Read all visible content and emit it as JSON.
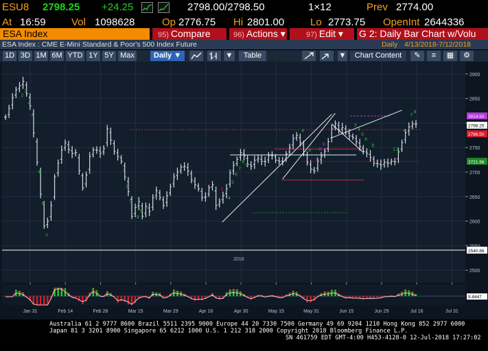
{
  "quote": {
    "ticker": "ESU8",
    "last": "2798.25",
    "change": "+24.25",
    "bid_ask": "2798.00/2798.50",
    "size": "1×12",
    "prev_label": "Prev",
    "prev": "2774.00",
    "time_label": "At",
    "time": "16:59",
    "vol_label": "Vol",
    "volume": "1098628",
    "open_label": "Op",
    "open": "2776.75",
    "high_label": "Hi",
    "high": "2801.00",
    "low_label": "Lo",
    "low": "2773.75",
    "oi_label": "OpenInt",
    "open_interest": "2644336"
  },
  "menubar": {
    "security": "ESA Index",
    "compare_num": "95)",
    "compare": "Compare",
    "actions_num": "96)",
    "actions": "Actions ▾",
    "edit_num": "97)",
    "edit": "Edit ▾",
    "title": "G 2: Daily Bar Chart w/Volu"
  },
  "info": {
    "description": "ESA Index : CME E-Mini Standard & Poor's 500 Index Future",
    "range_label": "Daily",
    "range": "4/13/2018-7/12/2018"
  },
  "toolbar": {
    "periods": [
      "1D",
      "3D",
      "1M",
      "6M",
      "YTD",
      "1Y",
      "5Y",
      "Max"
    ],
    "frequency": "Daily ▼",
    "table": "Table",
    "chart_content": "Chart Content"
  },
  "chart_data": {
    "type": "bar",
    "y_ticks": [
      "2900",
      "2850",
      "2800",
      "2750",
      "2700",
      "2650",
      "2600",
      "2550",
      "2500"
    ],
    "ylim": [
      2475,
      2925
    ],
    "x_ticks": [
      "Jan 31",
      "Feb 14",
      "Feb 28",
      "Mar 15",
      "Mar 29",
      "Apr 16",
      "Apr 30",
      "May 15",
      "May 31",
      "Jun 15",
      "Jun 29",
      "Jul 16",
      "Jul 31"
    ],
    "year_label": "2018",
    "price_tags": [
      {
        "value": "2814.50",
        "color": "#b23bd6"
      },
      {
        "value": "2798.25",
        "color": "#ffffff"
      },
      {
        "value": "2786.50",
        "color": "#d41e2c"
      },
      {
        "value": "2721.98",
        "color": "#1f8a2a"
      },
      {
        "value": "2540.86",
        "color": "#ffffff"
      }
    ],
    "indicator_tag": "9.8447",
    "series": [
      {
        "values": [
          2812,
          2830,
          2852,
          2868,
          2876,
          2885,
          2860,
          2835,
          2780,
          2720,
          2655,
          2590,
          2600,
          2632,
          2690,
          2718,
          2745,
          2760,
          2746,
          2738,
          2740,
          2703,
          2668,
          2694,
          2732,
          2745,
          2745,
          2738,
          2748,
          2788,
          2765,
          2742,
          2732,
          2722,
          2690,
          2660,
          2610,
          2628,
          2640,
          2610,
          2630,
          2620,
          2648,
          2662,
          2648,
          2632,
          2652,
          2670,
          2690,
          2700,
          2710,
          2712,
          2702,
          2684,
          2674,
          2666,
          2648,
          2650,
          2668,
          2674,
          2632,
          2640,
          2652,
          2666,
          2698,
          2714,
          2726,
          2740,
          2733,
          2716,
          2712,
          2724,
          2728,
          2722,
          2721,
          2734,
          2734,
          2724,
          2722,
          2722,
          2737,
          2750,
          2768,
          2775,
          2760,
          2742,
          2720,
          2706,
          2702,
          2722,
          2732,
          2742,
          2762,
          2788,
          2799,
          2786,
          2791,
          2782,
          2774,
          2771,
          2762,
          2752,
          2742,
          2738,
          2730,
          2718,
          2717,
          2714,
          2720,
          2718,
          2722,
          2721,
          2741,
          2760,
          2780,
          2792,
          2798,
          2798
        ]
      }
    ]
  },
  "footer": {
    "line1": "Australia 61 2 9777 8600 Brazil 5511 2395 9000 Europe 44 20 7330 7500 Germany 49 69 9204 1210 Hong Kong 852 2977 6000",
    "line2": "Japan 81 3 3201 8900          Singapore 65 6212 1000          U.S. 1 212 318 2000          Copyright 2018 Bloomberg Finance L.P.",
    "line3": "SN 461759 EDT  GMT-4:00 H453-4128-0 12-Jul-2018 17:27:02"
  }
}
